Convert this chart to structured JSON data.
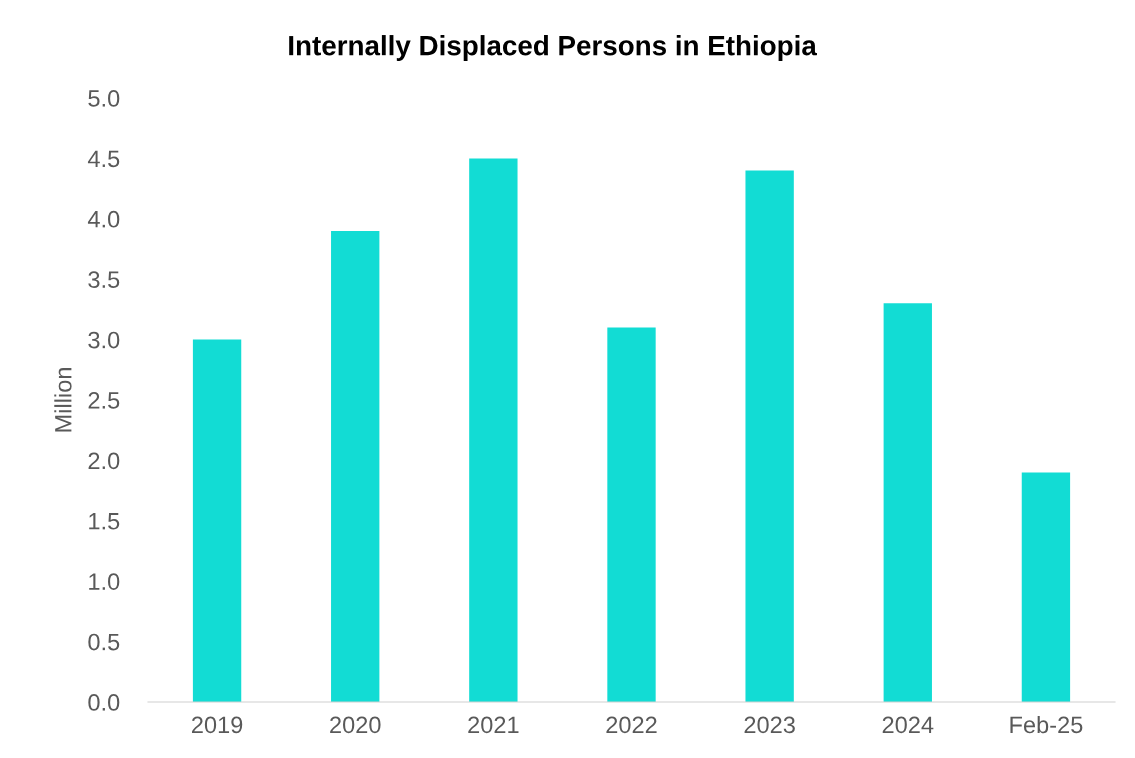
{
  "chart_data": {
    "type": "bar",
    "title": "Internally Displaced Persons in Ethiopia",
    "ylabel": "Million",
    "categories": [
      "2019",
      "2020",
      "2021",
      "2022",
      "2023",
      "2024",
      "Feb-25"
    ],
    "values": [
      3.0,
      3.9,
      4.5,
      3.1,
      4.4,
      3.3,
      1.9
    ],
    "color": "#12dcd4",
    "ylim": [
      0,
      5
    ],
    "yticks": [
      {
        "value": 0,
        "label": "0.0"
      },
      {
        "value": 0.5,
        "label": "0.5"
      },
      {
        "value": 1,
        "label": "1.0"
      },
      {
        "value": 1.5,
        "label": "1.5"
      },
      {
        "value": 2,
        "label": "2.0"
      },
      {
        "value": 2.5,
        "label": "2.5"
      },
      {
        "value": 3,
        "label": "3.0"
      },
      {
        "value": 3.5,
        "label": "3.5"
      },
      {
        "value": 4,
        "label": "4.0"
      },
      {
        "value": 4.5,
        "label": "4.5"
      },
      {
        "value": 5,
        "label": "5.0"
      }
    ],
    "grid": false
  }
}
